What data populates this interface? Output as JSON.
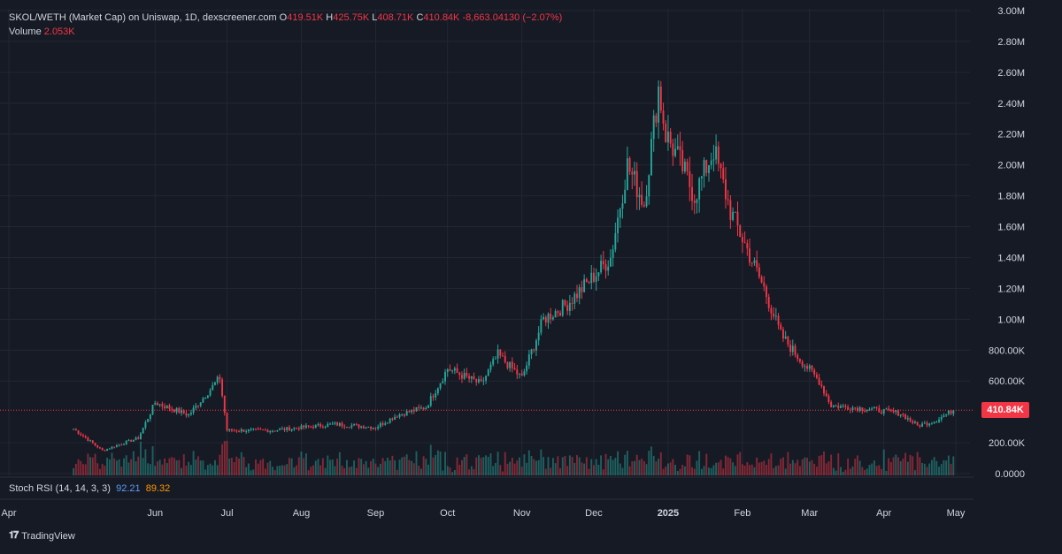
{
  "legend": {
    "pair": "SKOL/WETH (Market Cap) on Uniswap, 1D, dexscreener.com",
    "o_label": "O",
    "o_value": "419.51K",
    "h_label": "H",
    "h_value": "425.75K",
    "l_label": "L",
    "l_value": "408.71K",
    "c_label": "C",
    "c_value": "410.84K",
    "change": "-8,663.04130 (−2.07%)",
    "volume_label": "Volume",
    "volume_value": "2.053K"
  },
  "indicator": {
    "label": "Stoch RSI (14, 14, 3, 3)",
    "k_value": "92.21",
    "d_value": "89.32"
  },
  "last_price_tag": "410.84K",
  "branding": "TradingView",
  "colors": {
    "background": "#161a25",
    "up": "#26a69a",
    "down": "#f23645",
    "grid": "#232733",
    "text": "#d1d4dc"
  },
  "chart_data": {
    "type": "candlestick",
    "title": "",
    "x_tick_labels": [
      "Apr",
      "Jun",
      "Jul",
      "Aug",
      "Sep",
      "Oct",
      "Nov",
      "Dec",
      "2025",
      "Feb",
      "Mar",
      "Apr",
      "May"
    ],
    "y_tick_labels": [
      "3.00M",
      "2.80M",
      "2.60M",
      "2.40M",
      "2.20M",
      "2.00M",
      "1.80M",
      "1.60M",
      "1.40M",
      "1.20M",
      "1.00M",
      "800.00K",
      "600.00K",
      "200.00K",
      "0.0000"
    ],
    "ylim": [
      0,
      3000000
    ],
    "last_close": 410840,
    "grid": true,
    "series_key_points": [
      {
        "x": "2024-04-28",
        "close": 290000
      },
      {
        "x": "2024-05-10",
        "close": 150000
      },
      {
        "x": "2024-05-25",
        "close": 230000
      },
      {
        "x": "2024-06-01",
        "close": 460000
      },
      {
        "x": "2024-06-15",
        "close": 380000
      },
      {
        "x": "2024-06-28",
        "close": 620000
      },
      {
        "x": "2024-07-01",
        "close": 280000
      },
      {
        "x": "2024-07-20",
        "close": 280000
      },
      {
        "x": "2024-08-15",
        "close": 320000
      },
      {
        "x": "2024-09-01",
        "close": 300000
      },
      {
        "x": "2024-09-10",
        "close": 380000
      },
      {
        "x": "2024-09-22",
        "close": 430000
      },
      {
        "x": "2024-10-01",
        "close": 680000
      },
      {
        "x": "2024-10-15",
        "close": 580000
      },
      {
        "x": "2024-10-22",
        "close": 770000
      },
      {
        "x": "2024-11-01",
        "close": 620000
      },
      {
        "x": "2024-11-10",
        "close": 1000000
      },
      {
        "x": "2024-11-20",
        "close": 1100000
      },
      {
        "x": "2024-12-01",
        "close": 1280000
      },
      {
        "x": "2024-12-08",
        "close": 1400000
      },
      {
        "x": "2024-12-15",
        "close": 2000000
      },
      {
        "x": "2024-12-22",
        "close": 1750000
      },
      {
        "x": "2024-12-28",
        "close": 2500000
      },
      {
        "x": "2024-12-31",
        "close": 2200000
      },
      {
        "x": "2025-01-05",
        "close": 2050000
      },
      {
        "x": "2025-01-12",
        "close": 1800000
      },
      {
        "x": "2025-01-20",
        "close": 2100000
      },
      {
        "x": "2025-01-27",
        "close": 1700000
      },
      {
        "x": "2025-02-03",
        "close": 1450000
      },
      {
        "x": "2025-02-10",
        "close": 1200000
      },
      {
        "x": "2025-02-17",
        "close": 900000
      },
      {
        "x": "2025-02-24",
        "close": 760000
      },
      {
        "x": "2025-03-05",
        "close": 600000
      },
      {
        "x": "2025-03-10",
        "close": 440000
      },
      {
        "x": "2025-03-25",
        "close": 420000
      },
      {
        "x": "2025-04-08",
        "close": 390000
      },
      {
        "x": "2025-04-15",
        "close": 310000
      },
      {
        "x": "2025-04-22",
        "close": 340000
      },
      {
        "x": "2025-04-30",
        "close": 410840
      }
    ]
  }
}
